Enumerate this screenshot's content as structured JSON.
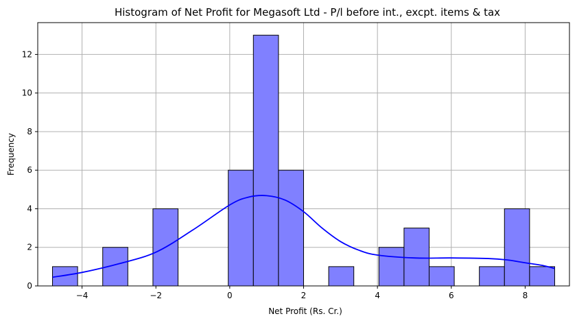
{
  "chart_data": {
    "type": "bar",
    "title": "Histogram of Net Profit for Megasoft Ltd - P/l before int., excpt. items & tax",
    "xlabel": "Net Profit (Rs. Cr.)",
    "ylabel": "Frequency",
    "xlim": [
      -5.2,
      9.2
    ],
    "ylim": [
      0,
      13.65
    ],
    "grid": true,
    "xticks": [
      -4,
      -2,
      0,
      2,
      4,
      6,
      8
    ],
    "xtick_labels": [
      "−4",
      "−2",
      "0",
      "2",
      "4",
      "6",
      "8"
    ],
    "yticks": [
      0,
      2,
      4,
      6,
      8,
      10,
      12
    ],
    "ytick_labels": [
      "0",
      "2",
      "4",
      "6",
      "8",
      "10",
      "12"
    ],
    "bin_edges": [
      -4.8,
      -4.12,
      -3.44,
      -2.76,
      -2.08,
      -1.4,
      -0.72,
      -0.04,
      0.64,
      1.32,
      2.0,
      2.68,
      3.36,
      4.04,
      4.72,
      5.4,
      6.08,
      6.76,
      7.44,
      8.12,
      8.8
    ],
    "counts": [
      1,
      0,
      2,
      0,
      4,
      0,
      0,
      6,
      13,
      6,
      0,
      1,
      0,
      2,
      3,
      1,
      0,
      1,
      4,
      1
    ],
    "kde": {
      "x": [
        -4.8,
        -4.0,
        -3.0,
        -2.0,
        -1.0,
        0.0,
        0.5,
        1.0,
        1.5,
        2.0,
        2.5,
        3.0,
        3.5,
        4.0,
        5.0,
        6.0,
        7.0,
        7.5,
        8.0,
        8.5,
        8.8
      ],
      "y": [
        0.45,
        0.7,
        1.15,
        1.75,
        2.9,
        4.2,
        4.6,
        4.68,
        4.45,
        3.85,
        3.0,
        2.3,
        1.85,
        1.6,
        1.45,
        1.45,
        1.42,
        1.35,
        1.2,
        1.05,
        0.9
      ]
    },
    "colors": {
      "bar_fill": "#8080ff",
      "bar_edge": "#000000",
      "kde_line": "#0000ff",
      "grid": "#b0b0b0"
    }
  }
}
